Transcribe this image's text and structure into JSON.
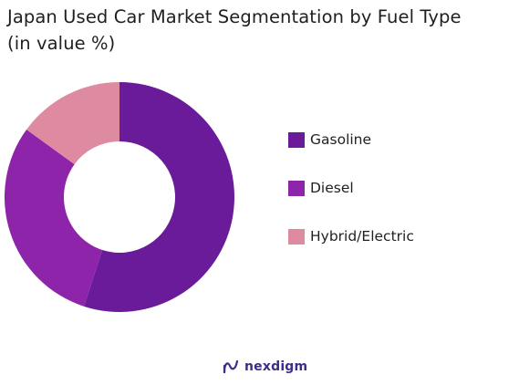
{
  "header": {
    "title_line1": "Japan Used Car Market Segmentation by Fuel Type",
    "title_line2": "(in value %)"
  },
  "chart_data": {
    "type": "pie",
    "style": "donut",
    "categories": [
      "Gasoline",
      "Diesel",
      "Hybrid/Electric"
    ],
    "values": [
      55,
      30,
      15
    ],
    "colors": [
      "#6a1b9a",
      "#8e24aa",
      "#de8ba2"
    ],
    "legend_position": "right",
    "start_angle": "12 o'clock, clockwise"
  },
  "brand": {
    "name": "nexdigm",
    "icon": "nexdigm-logo-icon"
  }
}
